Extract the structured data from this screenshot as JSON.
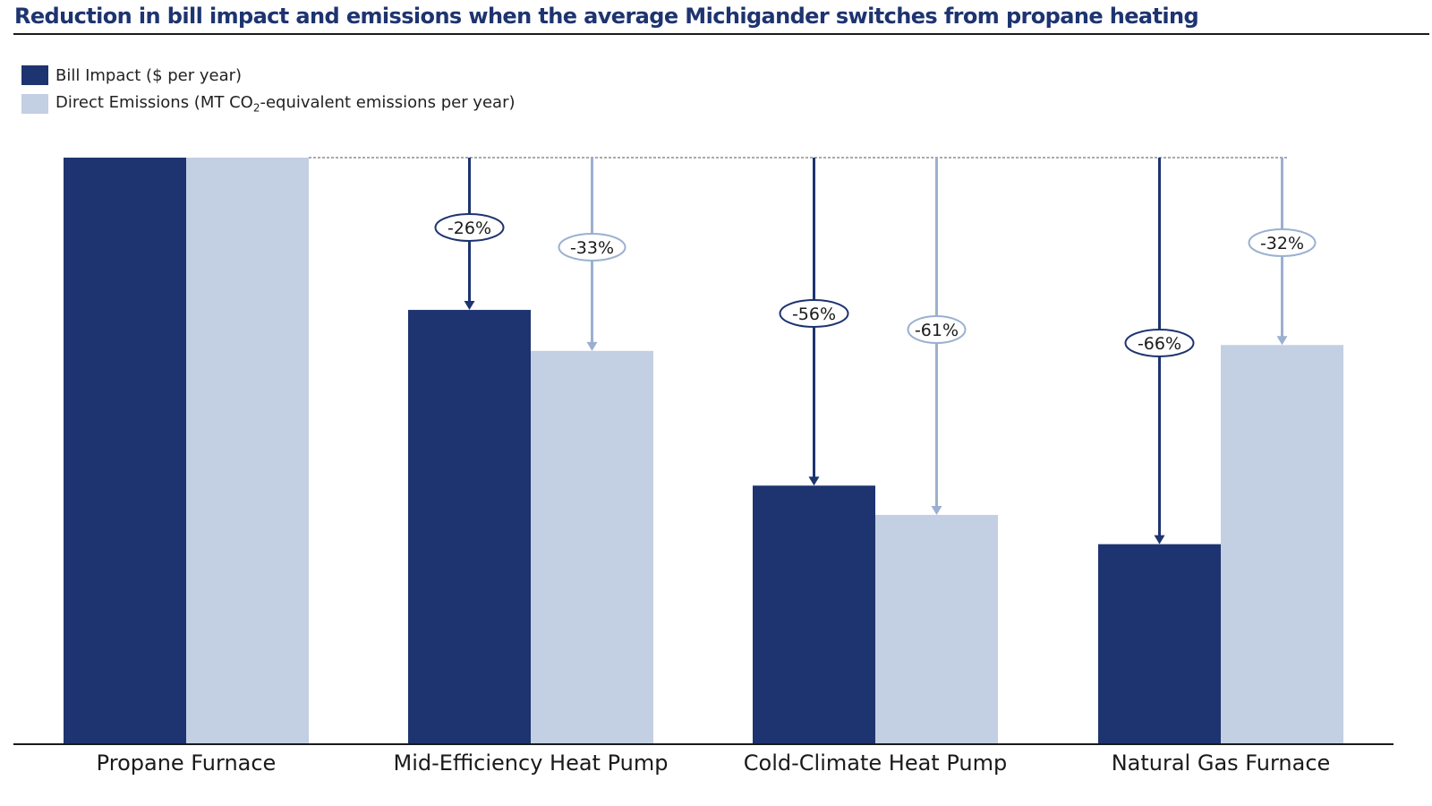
{
  "chart_data": {
    "type": "bar",
    "title": "Reduction in bill impact and emissions when the average Michigander switches from propane heating",
    "categories": [
      "Propane Furnace",
      "Mid-Efficiency Heat Pump",
      "Cold-Climate Heat Pump",
      "Natural Gas Furnace"
    ],
    "series": [
      {
        "name": "Bill Impact ($ per year)",
        "color": "#1e3470",
        "values": [
          100,
          74,
          44,
          34
        ],
        "labels": [
          "",
          "-26%",
          "-56%",
          "-66%"
        ]
      },
      {
        "name_parts": [
          "Direct Emissions (MT CO",
          "2",
          "-equivalent emissions per year)"
        ],
        "color": "#c3cfe2",
        "arrow_color": "#9bb0d0",
        "values": [
          100,
          67,
          39,
          68
        ],
        "labels": [
          "",
          "-33%",
          "-61%",
          "-32%"
        ]
      }
    ],
    "ylim": [
      0,
      100
    ],
    "yaxis_shown": false,
    "grid": false,
    "legend": "top-left",
    "reference_line": "dashed line at the propane baseline (100%)"
  }
}
